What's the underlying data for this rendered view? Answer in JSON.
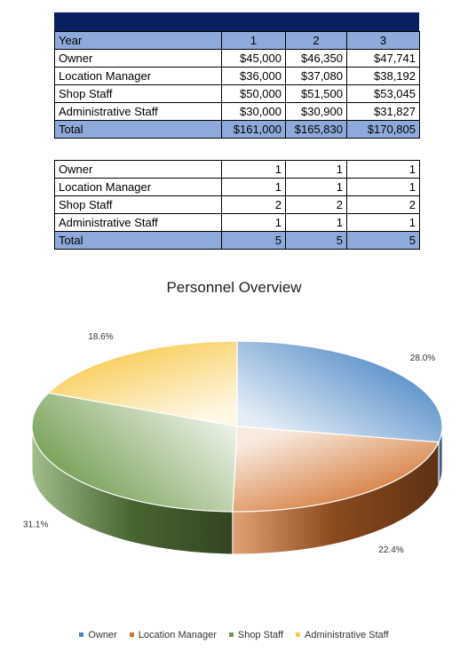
{
  "cost_table": {
    "header": [
      "Year",
      "1",
      "2",
      "3"
    ],
    "rows": [
      [
        "Owner",
        "$45,000",
        "$46,350",
        "$47,741"
      ],
      [
        "Location Manager",
        "$36,000",
        "$37,080",
        "$38,192"
      ],
      [
        "Shop Staff",
        "$50,000",
        "$51,500",
        "$53,045"
      ],
      [
        "Administrative Staff",
        "$30,000",
        "$30,900",
        "$31,827"
      ]
    ],
    "total": [
      "Total",
      "$161,000",
      "$165,830",
      "$170,805"
    ]
  },
  "count_table": {
    "rows": [
      [
        "Owner",
        "1",
        "1",
        "1"
      ],
      [
        "Location Manager",
        "1",
        "1",
        "1"
      ],
      [
        "Shop Staff",
        "2",
        "2",
        "2"
      ],
      [
        "Administrative Staff",
        "1",
        "1",
        "1"
      ]
    ],
    "total": [
      "Total",
      "5",
      "5",
      "5"
    ]
  },
  "chart_data": {
    "type": "pie",
    "title": "Personnel Overview",
    "categories": [
      "Owner",
      "Location Manager",
      "Shop Staff",
      "Administrative Staff"
    ],
    "values": [
      28.0,
      22.4,
      31.1,
      18.6
    ],
    "labels": [
      "28.0%",
      "22.4%",
      "31.1%",
      "18.6%"
    ],
    "colors": [
      "#4a86c5",
      "#d2702c",
      "#6f9a4c",
      "#f8c94c"
    ],
    "legend_position": "bottom",
    "style": "3d"
  }
}
